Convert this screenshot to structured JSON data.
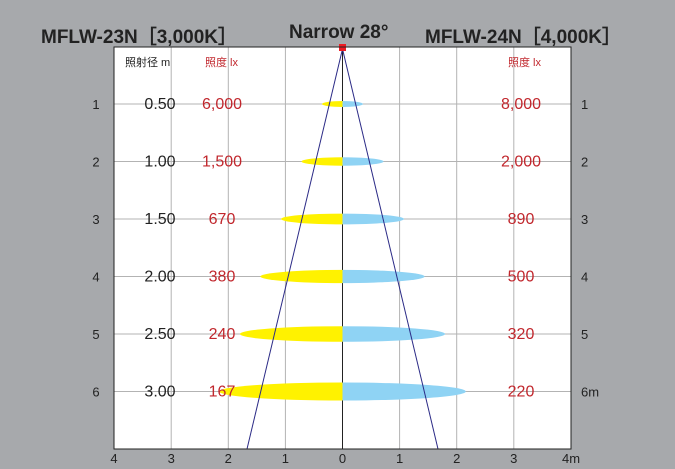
{
  "header": {
    "left_model": "MFLW-23N［3,000K］",
    "beam_angle": "Narrow 28°",
    "right_model": "MFLW-24N［4,000K］"
  },
  "columns": {
    "distance": "照射径 m",
    "illuminance_left": "照度 lx",
    "illuminance_right": "照度 lx"
  },
  "colors": {
    "background": "#a7a9ac",
    "panel": "#ffffff",
    "grid": "#b3b3b3",
    "beam_line": "#2b2a86",
    "warm_spot": "#fff200",
    "cool_spot": "#8fd3f4",
    "lux_text": "#c1272d",
    "source_marker": "#ed1c24"
  },
  "x_axis_labels": [
    "4",
    "3",
    "2",
    "1",
    "0",
    "1",
    "2",
    "3",
    "4m"
  ],
  "rows": [
    {
      "index": "1",
      "distance_label": "0.50",
      "diameter": 0.5,
      "lux_left": "6,000",
      "lux_right": "8,000",
      "right_index": "1"
    },
    {
      "index": "2",
      "distance_label": "1.00",
      "diameter": 1.0,
      "lux_left": "1,500",
      "lux_right": "2,000",
      "right_index": "2"
    },
    {
      "index": "3",
      "distance_label": "1.50",
      "diameter": 1.5,
      "lux_left": "670",
      "lux_right": "890",
      "right_index": "3"
    },
    {
      "index": "4",
      "distance_label": "2.00",
      "diameter": 2.0,
      "lux_left": "380",
      "lux_right": "500",
      "right_index": "4"
    },
    {
      "index": "5",
      "distance_label": "2.50",
      "diameter": 2.5,
      "lux_left": "240",
      "lux_right": "320",
      "right_index": "5"
    },
    {
      "index": "6",
      "distance_label": "3.00",
      "diameter": 3.0,
      "lux_left": "167",
      "lux_right": "220",
      "right_index": "6m"
    }
  ]
}
